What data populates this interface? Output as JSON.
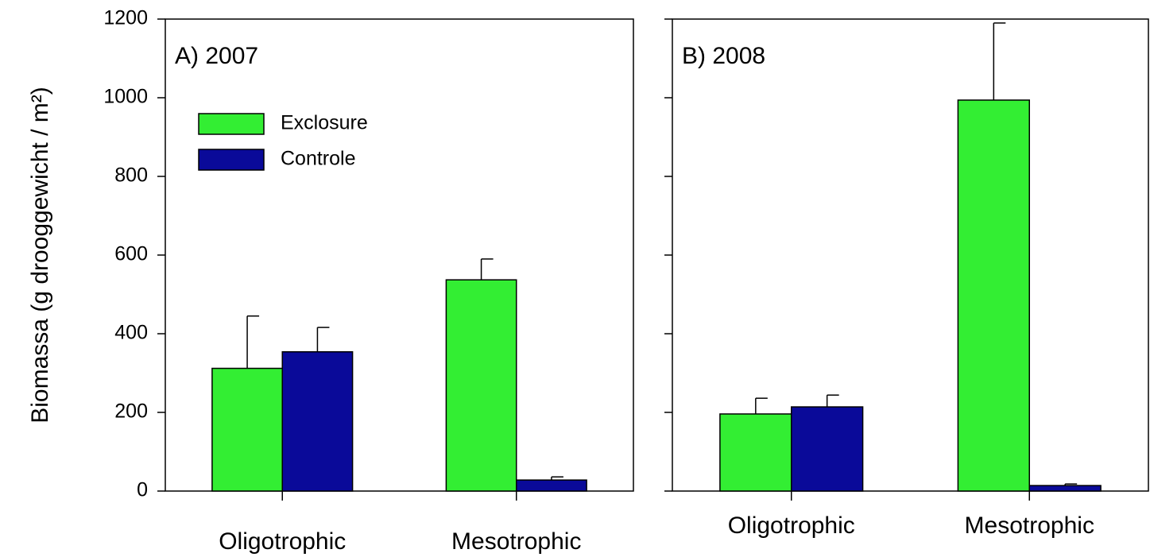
{
  "chart_data": [
    {
      "type": "bar",
      "title": "A) 2007",
      "ylabel": "Biomassa (g drooggewicht / m²)",
      "categories": [
        "Oligotrophic",
        "Mesotrophic"
      ],
      "series": [
        {
          "name": "Exclosure",
          "color": "#33ee33",
          "values": [
            312,
            537
          ],
          "errors": [
            133,
            53
          ]
        },
        {
          "name": "Controle",
          "color": "#0a0a99",
          "values": [
            354,
            28
          ],
          "errors": [
            62,
            8
          ]
        }
      ],
      "ylim": [
        0,
        1200
      ],
      "yticks": [
        0,
        200,
        400,
        600,
        800,
        1000,
        1200
      ],
      "tick_labels": true,
      "legend": "upper left"
    },
    {
      "type": "bar",
      "title": "B) 2008",
      "categories": [
        "Oligotrophic",
        "Mesotrophic"
      ],
      "series": [
        {
          "color": "#33ee33",
          "values": [
            196,
            994
          ],
          "errors": [
            40,
            196
          ]
        },
        {
          "color": "#0a0a99",
          "values": [
            214,
            14
          ],
          "errors": [
            30,
            4
          ]
        }
      ],
      "ylim": [
        0,
        1200
      ],
      "yticks": [
        0,
        200,
        400,
        600,
        800,
        1000,
        1200
      ],
      "tick_labels": false
    }
  ]
}
